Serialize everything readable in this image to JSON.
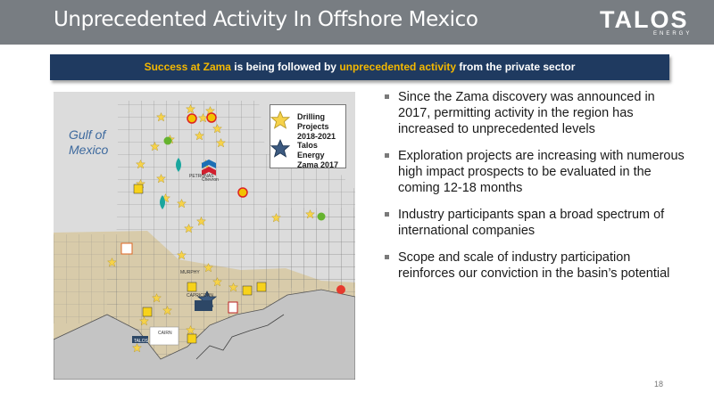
{
  "header": {
    "title": "Unprecedented Activity In Offshore Mexico",
    "logo_text": "TALOS",
    "logo_sub": "ENERGY"
  },
  "banner": {
    "part1": "Success at Zama",
    "part2": " is being followed by ",
    "part3": "unprecedented activity",
    "part4": " from the private sector"
  },
  "map": {
    "gulf_label_line1": "Gulf of",
    "gulf_label_line2": "Mexico",
    "legend": {
      "drilling_line1": "Drilling Projects",
      "drilling_line2": "2018-2021",
      "talos_line1": "Talos Energy",
      "talos_line2": "Zama 2017"
    },
    "logos": {
      "petronas": "PETRONAS",
      "murphy": "MURPHY",
      "capricorn": "CAPRICORN",
      "cairn": "CAIRN",
      "talos": "TALOS",
      "chevron": "Chevron"
    },
    "colors": {
      "water": "#dcdcdc",
      "shelf": "#d8cbaa",
      "land": "#c8c8c8",
      "star": "#f6d24a",
      "talos_star": "#3c5a80"
    }
  },
  "bullets": [
    "Since the Zama discovery was announced in 2017, permitting activity in the region has increased to unprecedented levels",
    "Exploration projects are increasing with numerous high impact prospects to be evaluated in the coming 12-18 months",
    "Industry participants span a broad spectrum of international companies",
    "Scope and scale of industry participation reinforces our conviction in the basin’s potential"
  ],
  "page_number": "18"
}
